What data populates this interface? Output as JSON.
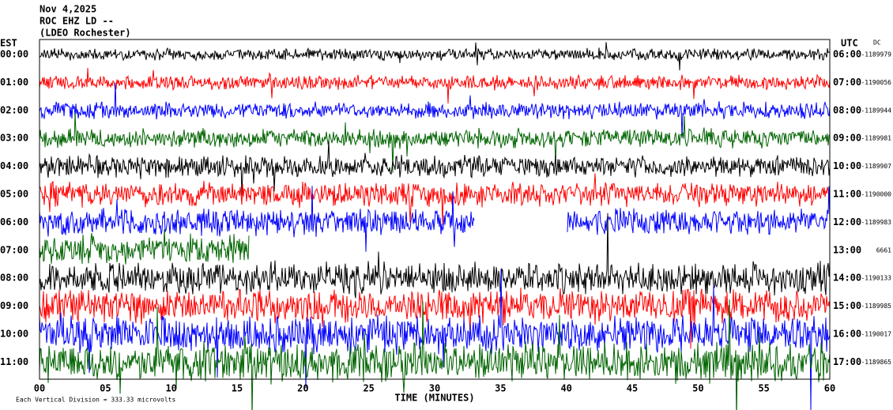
{
  "header": {
    "lines": [
      "Nov 4,2025",
      "ROC EHZ LD --",
      "(LDEO Rochester)"
    ]
  },
  "left_axis": {
    "title": "EST",
    "labels": [
      "00:00",
      "01:00",
      "02:00",
      "03:00",
      "04:00",
      "05:00",
      "06:00",
      "07:00",
      "08:00",
      "09:00",
      "10:00",
      "11:00"
    ]
  },
  "right_axis": {
    "title": "UTC",
    "dc_title": "DC",
    "labels": [
      "06:00",
      "07:00",
      "08:00",
      "09:00",
      "10:00",
      "11:00",
      "12:00",
      "13:00",
      "14:00",
      "15:00",
      "16:00",
      "17:00"
    ],
    "dc_values": [
      "-1189979",
      "-1190056",
      "-1189944",
      "-1189981",
      "-1189907",
      "-1190000",
      "-1189983",
      "6661",
      "-1190133",
      "-1189985",
      "-1190017",
      "-1189865"
    ]
  },
  "x_axis": {
    "title": "TIME (MINUTES)",
    "labels": [
      "00",
      "05",
      "10",
      "15",
      "20",
      "25",
      "30",
      "35",
      "40",
      "45",
      "50",
      "55",
      "60"
    ]
  },
  "footer": {
    "scale": "Each Vertical Division = 333.33 microvolts"
  }
}
